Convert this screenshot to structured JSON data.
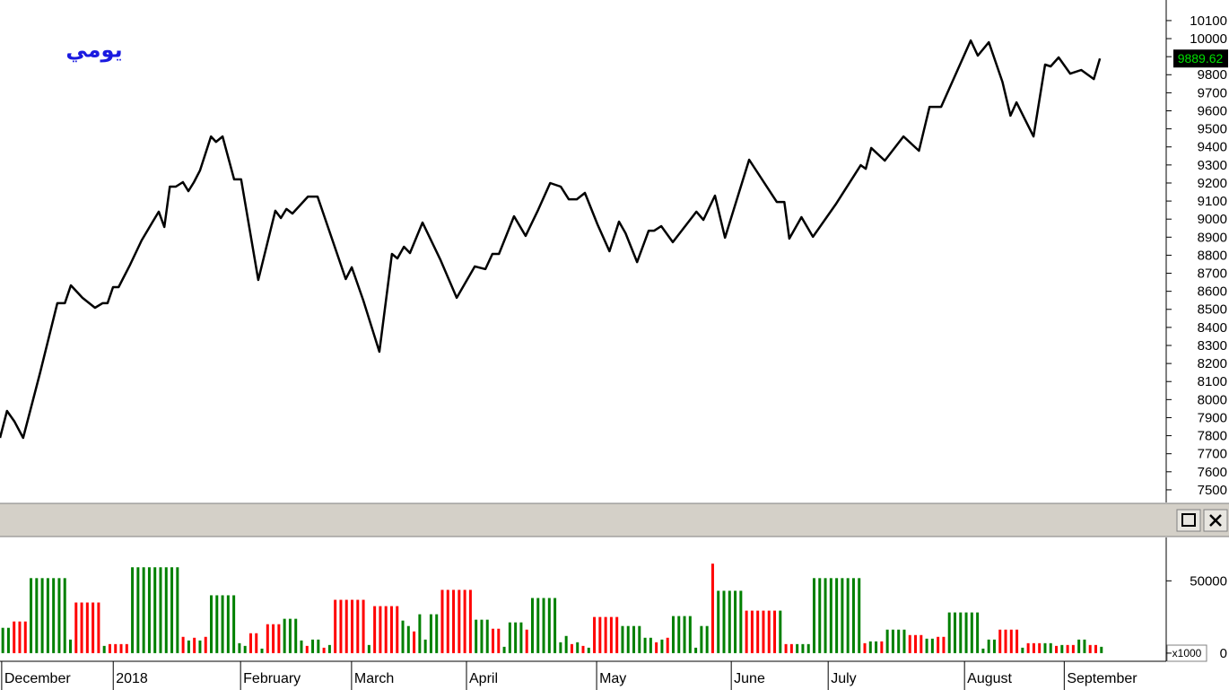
{
  "chart_data": [
    {
      "type": "line",
      "title": "يومي",
      "color": "#000000",
      "x": [
        0,
        1.4,
        2.9,
        4.6,
        8.0,
        11.4,
        12.9,
        14.1,
        16.4,
        18.9,
        20.4,
        21.4,
        22.5,
        23.6,
        25.9,
        28.2,
        30.4,
        31.6,
        32.7,
        33.8,
        35.0,
        36.4,
        37.5,
        38.6,
        39.8,
        42.0,
        43.0,
        44.3,
        46.6,
        48.0,
        51.4,
        54.8,
        55.9,
        57.0,
        58.2,
        61.3,
        63.2,
        68.8,
        70.0,
        72.3,
        75.5,
        78.0,
        79.1,
        80.4,
        81.6,
        84.1,
        87.7,
        90.9,
        94.5,
        96.6,
        98.0,
        99.3,
        102.3,
        104.6,
        107.1,
        109.5,
        111.6,
        113.2,
        114.8,
        116.4,
        118.9,
        121.3,
        123.2,
        124.5,
        126.8,
        129.1,
        130.2,
        131.6,
        133.9,
        138.6,
        140.0,
        142.3,
        144.3,
        149.1,
        154.6,
        156.1,
        157.1,
        159.5,
        161.8,
        166.3,
        171.3,
        172.3,
        173.4,
        176.1,
        179.8,
        182.9,
        185.0,
        187.3,
        193.2,
        194.6,
        196.8,
        199.5,
        201.1,
        202.3,
        205.7,
        208.0,
        209.1,
        210.7,
        213.0,
        215.2,
        217.7,
        218.9
      ],
      "values": [
        7788,
        7937,
        7878,
        7788,
        8151,
        8534,
        8534,
        8633,
        8564,
        8509,
        8534,
        8534,
        8623,
        8623,
        8748,
        8882,
        8986,
        9041,
        8956,
        9180,
        9180,
        9205,
        9155,
        9205,
        9269,
        9458,
        9428,
        9458,
        9220,
        9220,
        8663,
        9046,
        9006,
        9056,
        9031,
        9125,
        9125,
        8668,
        8733,
        8549,
        8265,
        8807,
        8782,
        8847,
        8812,
        8981,
        8772,
        8564,
        8738,
        8723,
        8807,
        8807,
        9016,
        8907,
        9051,
        9200,
        9180,
        9110,
        9110,
        9145,
        8971,
        8822,
        8986,
        8922,
        8762,
        8936,
        8936,
        8961,
        8872,
        9041,
        8996,
        9130,
        8897,
        9329,
        9095,
        9095,
        8892,
        9011,
        8902,
        9081,
        9299,
        9279,
        9394,
        9324,
        9458,
        9379,
        9622,
        9622,
        9990,
        9906,
        9980,
        9761,
        9573,
        9647,
        9458,
        9856,
        9846,
        9896,
        9806,
        9826,
        9776,
        9889.62
      ],
      "xlim": [
        0,
        232.1
      ],
      "ylim": [
        7430,
        10214
      ],
      "yticks": [
        7500,
        7600,
        7700,
        7800,
        7900,
        8000,
        8100,
        8200,
        8300,
        8400,
        8500,
        8600,
        8700,
        8800,
        8900,
        9000,
        9100,
        9200,
        9300,
        9400,
        9500,
        9600,
        9700,
        9800,
        9900,
        10000,
        10100
      ]
    },
    {
      "type": "bar",
      "values": [
        17500,
        17500,
        21875,
        21875,
        21875,
        51875,
        51875,
        51875,
        51875,
        51875,
        51875,
        51875,
        9375,
        35000,
        35000,
        35000,
        35000,
        35000,
        5000,
        6250,
        6250,
        6250,
        6250,
        59375,
        59375,
        59375,
        59375,
        59375,
        59375,
        59375,
        59375,
        59375,
        11250,
        8750,
        10625,
        8750,
        11250,
        40000,
        40000,
        40000,
        40000,
        40000,
        6875,
        5000,
        13750,
        13750,
        3125,
        20000,
        20000,
        20000,
        23750,
        23750,
        23750,
        8750,
        5000,
        9375,
        9375,
        3750,
        5625,
        36875,
        36875,
        36875,
        36875,
        36875,
        36875,
        5625,
        32500,
        32500,
        32500,
        32500,
        32500,
        22500,
        18750,
        15000,
        26875,
        9375,
        26875,
        26875,
        43750,
        43750,
        43750,
        43750,
        43750,
        43750,
        23125,
        23125,
        23125,
        16875,
        16875,
        4375,
        21250,
        21250,
        21250,
        16250,
        38125,
        38125,
        38125,
        38125,
        38125,
        7500,
        11875,
        6250,
        7500,
        5000,
        3750,
        25000,
        25000,
        25000,
        25000,
        25000,
        18750,
        18750,
        18750,
        18750,
        10625,
        10625,
        7500,
        9375,
        10625,
        25625,
        25625,
        25625,
        25625,
        3750,
        18750,
        18750,
        61875,
        43125,
        43125,
        43125,
        43125,
        43125,
        29375,
        29375,
        29375,
        29375,
        29375,
        29375,
        29375,
        6250,
        6250,
        6250,
        6250,
        6250,
        51875,
        51875,
        51875,
        51875,
        51875,
        51875,
        51875,
        51875,
        51875,
        6875,
        8125,
        8125,
        8125,
        16250,
        16250,
        16250,
        16250,
        12500,
        12500,
        12500,
        10000,
        10000,
        11250,
        11250,
        28125,
        28125,
        28125,
        28125,
        28125,
        28125,
        3125,
        9375,
        9375,
        16250,
        16250,
        16250,
        16250,
        3750,
        6875,
        6875,
        6875,
        6875,
        6875,
        5000,
        5625,
        5625,
        5625,
        9375,
        9375,
        5625,
        5625,
        4375
      ],
      "colors": [
        "green",
        "green",
        "red",
        "red",
        "red",
        "green",
        "green",
        "green",
        "green",
        "green",
        "green",
        "green",
        "green",
        "red",
        "red",
        "red",
        "red",
        "red",
        "green",
        "red",
        "red",
        "red",
        "red",
        "green",
        "green",
        "green",
        "green",
        "green",
        "green",
        "green",
        "green",
        "green",
        "red",
        "green",
        "red",
        "green",
        "red",
        "green",
        "green",
        "green",
        "green",
        "green",
        "green",
        "green",
        "red",
        "red",
        "green",
        "red",
        "red",
        "red",
        "green",
        "green",
        "green",
        "green",
        "red",
        "green",
        "green",
        "red",
        "green",
        "red",
        "red",
        "red",
        "red",
        "red",
        "red",
        "green",
        "red",
        "red",
        "red",
        "red",
        "red",
        "green",
        "green",
        "red",
        "green",
        "green",
        "green",
        "green",
        "red",
        "red",
        "red",
        "red",
        "red",
        "red",
        "green",
        "green",
        "green",
        "red",
        "red",
        "green",
        "green",
        "green",
        "green",
        "red",
        "green",
        "green",
        "green",
        "green",
        "green",
        "green",
        "green",
        "red",
        "green",
        "red",
        "green",
        "red",
        "red",
        "red",
        "red",
        "red",
        "green",
        "green",
        "green",
        "green",
        "green",
        "green",
        "red",
        "green",
        "red",
        "green",
        "green",
        "green",
        "green",
        "green",
        "green",
        "green",
        "red",
        "green",
        "green",
        "green",
        "green",
        "green",
        "red",
        "red",
        "red",
        "red",
        "red",
        "red",
        "green",
        "red",
        "red",
        "green",
        "green",
        "green",
        "green",
        "green",
        "green",
        "green",
        "green",
        "green",
        "green",
        "green",
        "green",
        "red",
        "green",
        "green",
        "red",
        "green",
        "green",
        "green",
        "green",
        "red",
        "red",
        "red",
        "green",
        "green",
        "red",
        "red",
        "green",
        "green",
        "green",
        "green",
        "green",
        "green",
        "green",
        "green",
        "green",
        "red",
        "red",
        "red",
        "red",
        "green",
        "red",
        "red",
        "red",
        "green",
        "green",
        "red",
        "green",
        "red",
        "red",
        "green",
        "green",
        "red",
        "red",
        "green"
      ],
      "xlim": [
        -0.5,
        206.5
      ],
      "ylim": [
        -4400,
        80000
      ],
      "yticks": [
        0,
        50000
      ],
      "multiplier": "x1000",
      "xticks": [
        {
          "value": -0.2,
          "label": "December"
        },
        {
          "value": 19.6,
          "label": "2018"
        },
        {
          "value": 42.2,
          "label": "February"
        },
        {
          "value": 61.9,
          "label": "March"
        },
        {
          "value": 82.3,
          "label": "April"
        },
        {
          "value": 105.4,
          "label": "May"
        },
        {
          "value": 129.3,
          "label": "June"
        },
        {
          "value": 146.5,
          "label": "July"
        },
        {
          "value": 170.7,
          "label": "August"
        },
        {
          "value": 188.4,
          "label": "September"
        }
      ]
    }
  ]
}
